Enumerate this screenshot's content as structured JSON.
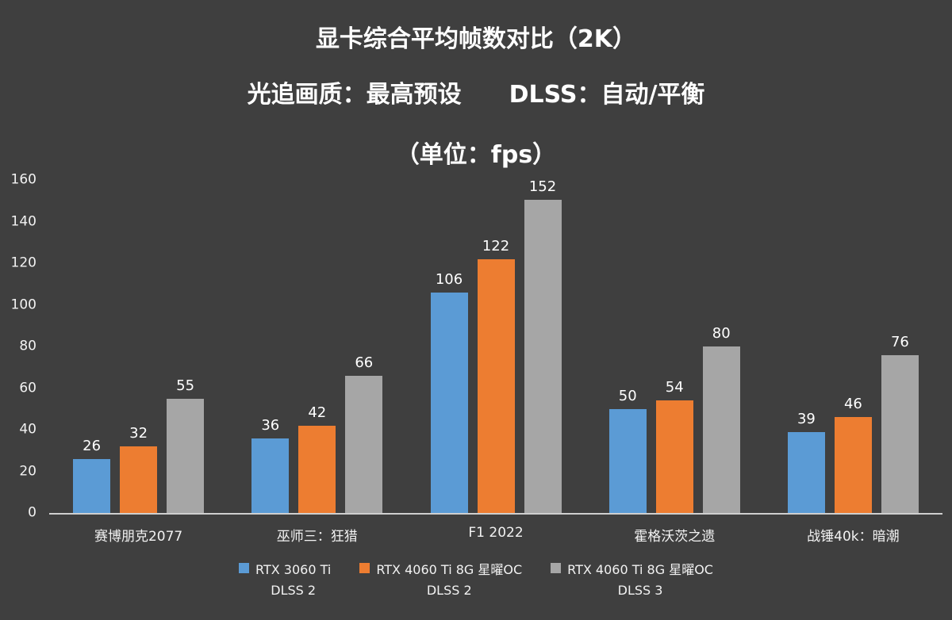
{
  "title": {
    "line1": "显卡综合平均帧数对比（2K）",
    "line2": "光追画质：最高预设　　DLSS：自动/平衡",
    "line3": "（单位：fps）"
  },
  "colors": {
    "background": "#3f3f3f",
    "text": "#ffffff",
    "axis_line": "#cfcfcf",
    "series_blue": "#5b9bd5",
    "series_orange": "#ed7d31",
    "series_gray": "#a6a6a6"
  },
  "chart_data": {
    "type": "bar",
    "title": "显卡综合平均帧数对比（2K）",
    "subtitle": "光追画质：最高预设　　DLSS：自动/平衡",
    "unit_label": "（单位：fps）",
    "categories": [
      "赛博朋克2077",
      "巫师三：狂猎",
      "F1 2022",
      "霍格沃茨之遗",
      "战锤40k：暗潮"
    ],
    "series": [
      {
        "name": "RTX 3060 Ti DLSS 2",
        "legend_lines": [
          "RTX 3060 Ti",
          "DLSS 2"
        ],
        "color": "#5b9bd5",
        "values": [
          26,
          36,
          106,
          50,
          39
        ]
      },
      {
        "name": "RTX 4060 Ti 8G 星曜OC DLSS 2",
        "legend_lines": [
          "RTX 4060 Ti 8G 星曜OC",
          "DLSS 2"
        ],
        "color": "#ed7d31",
        "values": [
          32,
          42,
          122,
          54,
          46
        ]
      },
      {
        "name": "RTX 4060 Ti 8G 星曜OC DLSS 3",
        "legend_lines": [
          "RTX 4060 Ti 8G 星曜OC",
          "DLSS 3"
        ],
        "color": "#a6a6a6",
        "values": [
          55,
          66,
          152,
          80,
          76
        ]
      }
    ],
    "xlabel": "",
    "ylabel": "",
    "ylim": [
      0,
      160
    ],
    "yticks": [
      0,
      20,
      40,
      60,
      80,
      100,
      120,
      140,
      160
    ],
    "grid": false,
    "legend_position": "bottom",
    "data_labels": true
  }
}
